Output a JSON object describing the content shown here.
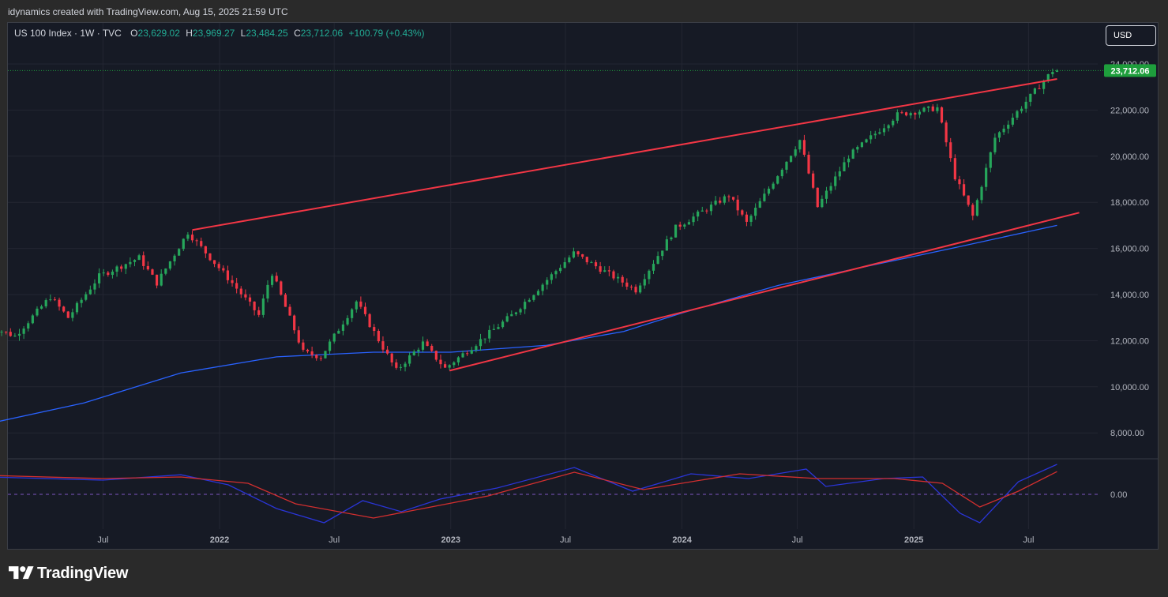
{
  "header": {
    "caption": "idynamics created with TradingView.com, Aug 15, 2025 21:59 UTC"
  },
  "legend": {
    "symbol": "US 100 Index · 1W · TVC",
    "open_label": "O",
    "open": "23,629.02",
    "high_label": "H",
    "high": "23,969.27",
    "low_label": "L",
    "low": "23,484.25",
    "close_label": "C",
    "close": "23,712.06",
    "change": "+100.79 (+0.43%)"
  },
  "currency_button": "USD",
  "brand": {
    "name": "TradingView"
  },
  "colors": {
    "up": "#22ab94",
    "up_candle": "#26a65b",
    "down": "#f23645",
    "trendline": "#f23645",
    "ma": "#2962ff",
    "price_label_bg": "#1e9e3c",
    "osc_fast": "#2a35d8",
    "osc_slow": "#d32f2f"
  },
  "chart_data": {
    "type": "candlestick",
    "symbol": "US 100 Index",
    "interval": "1W",
    "x_ticks": [
      "Jul",
      "2022",
      "Jul",
      "2023",
      "Jul",
      "2024",
      "Jul",
      "2025",
      "Jul"
    ],
    "y_ticks": [
      "24,000.00",
      "22,000.00",
      "20,000.00",
      "18,000.00",
      "16,000.00",
      "14,000.00",
      "12,000.00",
      "10,000.00",
      "8,000.00"
    ],
    "ylim": [
      7200,
      25000
    ],
    "last_price": 23712.06,
    "last_price_label": "23,712.06",
    "grid": true,
    "price_path": [
      [
        "2021-01-01",
        12700
      ],
      [
        "2021-02-19",
        12200
      ],
      [
        "2021-04-16",
        13900
      ],
      [
        "2021-05-14",
        13000
      ],
      [
        "2021-07-02",
        14800
      ],
      [
        "2021-09-03",
        15600
      ],
      [
        "2021-10-01",
        14500
      ],
      [
        "2021-11-19",
        16700
      ],
      [
        "2022-01-28",
        14500
      ],
      [
        "2022-03-11",
        13100
      ],
      [
        "2022-03-31",
        15000
      ],
      [
        "2022-05-20",
        11500
      ],
      [
        "2022-06-17",
        11300
      ],
      [
        "2022-08-12",
        13700
      ],
      [
        "2022-10-14",
        10700
      ],
      [
        "2022-11-25",
        11900
      ],
      [
        "2022-12-30",
        10800
      ],
      [
        "2023-04-14",
        13100
      ],
      [
        "2023-07-21",
        15800
      ],
      [
        "2023-10-27",
        14200
      ],
      [
        "2023-12-29",
        16900
      ],
      [
        "2024-03-22",
        18300
      ],
      [
        "2024-04-19",
        17100
      ],
      [
        "2024-07-12",
        20700
      ],
      [
        "2024-08-09",
        17800
      ],
      [
        "2024-09-27",
        20000
      ],
      [
        "2024-12-13",
        21800
      ],
      [
        "2025-02-14",
        22100
      ],
      [
        "2025-03-14",
        19100
      ],
      [
        "2025-04-11",
        17400
      ],
      [
        "2025-05-16",
        20800
      ],
      [
        "2025-08-15",
        23712.06
      ]
    ],
    "trendlines": [
      {
        "name": "upper",
        "from": [
          "2021-11-19",
          16800
        ],
        "to": [
          "2025-08-15",
          23350
        ]
      },
      {
        "name": "lower",
        "from": [
          "2022-12-30",
          10700
        ],
        "to": [
          "2025-09-19",
          17550
        ]
      }
    ],
    "moving_average": [
      [
        "2021-01-01",
        8400
      ],
      [
        "2021-06-01",
        9300
      ],
      [
        "2021-11-01",
        10600
      ],
      [
        "2022-04-01",
        11300
      ],
      [
        "2022-09-01",
        11500
      ],
      [
        "2023-01-01",
        11500
      ],
      [
        "2023-06-01",
        11800
      ],
      [
        "2023-10-01",
        12400
      ],
      [
        "2024-01-01",
        13200
      ],
      [
        "2024-06-01",
        14400
      ],
      [
        "2024-11-01",
        15300
      ],
      [
        "2025-03-01",
        16000
      ],
      [
        "2025-08-15",
        17000
      ]
    ],
    "oscillator": {
      "zero_label": "0.00",
      "fast": [
        [
          "2021-01-01",
          0.55
        ],
        [
          "2021-07-01",
          0.45
        ],
        [
          "2021-11-01",
          0.62
        ],
        [
          "2022-01-15",
          0.3
        ],
        [
          "2022-04-01",
          -0.45
        ],
        [
          "2022-06-15",
          -0.9
        ],
        [
          "2022-08-15",
          -0.2
        ],
        [
          "2022-10-15",
          -0.55
        ],
        [
          "2022-12-15",
          -0.15
        ],
        [
          "2023-03-15",
          0.2
        ],
        [
          "2023-07-15",
          0.85
        ],
        [
          "2023-10-15",
          0.1
        ],
        [
          "2024-01-15",
          0.65
        ],
        [
          "2024-04-15",
          0.5
        ],
        [
          "2024-07-15",
          0.8
        ],
        [
          "2024-08-15",
          0.25
        ],
        [
          "2024-11-15",
          0.5
        ],
        [
          "2025-01-15",
          0.55
        ],
        [
          "2025-03-15",
          -0.6
        ],
        [
          "2025-04-15",
          -0.9
        ],
        [
          "2025-06-15",
          0.4
        ],
        [
          "2025-08-15",
          0.95
        ]
      ],
      "slow": [
        [
          "2021-01-01",
          0.6
        ],
        [
          "2021-07-01",
          0.5
        ],
        [
          "2021-11-01",
          0.55
        ],
        [
          "2022-02-15",
          0.35
        ],
        [
          "2022-05-01",
          -0.3
        ],
        [
          "2022-09-01",
          -0.75
        ],
        [
          "2022-12-01",
          -0.4
        ],
        [
          "2023-03-01",
          -0.05
        ],
        [
          "2023-07-15",
          0.7
        ],
        [
          "2023-11-01",
          0.15
        ],
        [
          "2024-04-01",
          0.65
        ],
        [
          "2024-08-01",
          0.5
        ],
        [
          "2024-12-01",
          0.5
        ],
        [
          "2025-02-15",
          0.35
        ],
        [
          "2025-04-15",
          -0.4
        ],
        [
          "2025-06-15",
          0.1
        ],
        [
          "2025-08-15",
          0.72
        ]
      ]
    }
  }
}
